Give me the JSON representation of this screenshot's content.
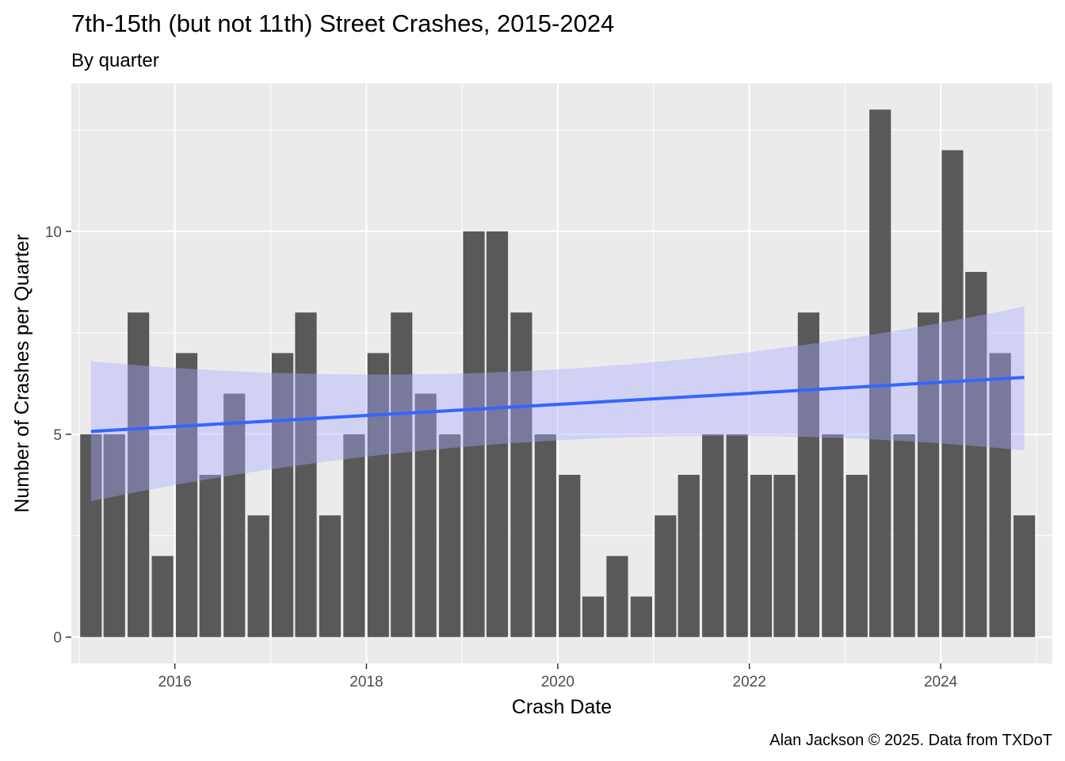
{
  "chart_data": {
    "type": "bar",
    "title": "7th-15th (but not 11th) Street Crashes, 2015-2024",
    "subtitle": "By quarter",
    "xlabel": "Crash Date",
    "ylabel": "Number of Crashes per Quarter",
    "caption": "Alan Jackson © 2025. Data from TXDoT",
    "xlim": [
      "2014-12-02",
      "2025-03-02"
    ],
    "ylim": [
      -0.65,
      13.65
    ],
    "x_ticks": [
      {
        "date": "2016-01-01",
        "label": "2016"
      },
      {
        "date": "2018-01-01",
        "label": "2018"
      },
      {
        "date": "2020-01-01",
        "label": "2020"
      },
      {
        "date": "2022-01-01",
        "label": "2022"
      },
      {
        "date": "2024-01-01",
        "label": "2024"
      }
    ],
    "y_ticks": [
      0,
      5,
      10
    ],
    "categories": [
      "2015-02-15",
      "2015-05-15",
      "2015-08-15",
      "2015-11-15",
      "2016-02-15",
      "2016-05-15",
      "2016-08-15",
      "2016-11-15",
      "2017-02-15",
      "2017-05-15",
      "2017-08-15",
      "2017-11-15",
      "2018-02-15",
      "2018-05-15",
      "2018-08-15",
      "2018-11-15",
      "2019-02-15",
      "2019-05-15",
      "2019-08-15",
      "2019-11-15",
      "2020-02-15",
      "2020-05-15",
      "2020-08-15",
      "2020-11-15",
      "2021-02-15",
      "2021-05-15",
      "2021-08-15",
      "2021-11-15",
      "2022-02-15",
      "2022-05-15",
      "2022-08-15",
      "2022-11-15",
      "2023-02-15",
      "2023-05-15",
      "2023-08-15",
      "2023-11-15",
      "2024-02-15",
      "2024-05-15",
      "2024-08-15",
      "2024-11-15"
    ],
    "values": [
      5,
      5,
      8,
      2,
      7,
      4,
      6,
      3,
      7,
      8,
      3,
      5,
      7,
      8,
      6,
      5,
      10,
      10,
      8,
      5,
      4,
      1,
      2,
      1,
      3,
      4,
      5,
      5,
      4,
      4,
      8,
      5,
      4,
      13,
      5,
      8,
      12,
      9,
      7,
      3
    ],
    "trend": {
      "method": "linear",
      "start": {
        "x": "2015-02-15",
        "y": 5.07
      },
      "end": {
        "x": "2024-11-15",
        "y": 6.4
      },
      "ci_start": [
        3.35,
        6.8
      ],
      "ci_mid": [
        4.85,
        6.6
      ],
      "ci_end": [
        4.6,
        8.15
      ]
    },
    "grid": true,
    "legend": "none",
    "colors": {
      "bar": "#595959",
      "trend_line": "#3366FF",
      "ci_band": "#ccccf0",
      "panel": "#ebebeb",
      "grid": "#ffffff"
    }
  }
}
